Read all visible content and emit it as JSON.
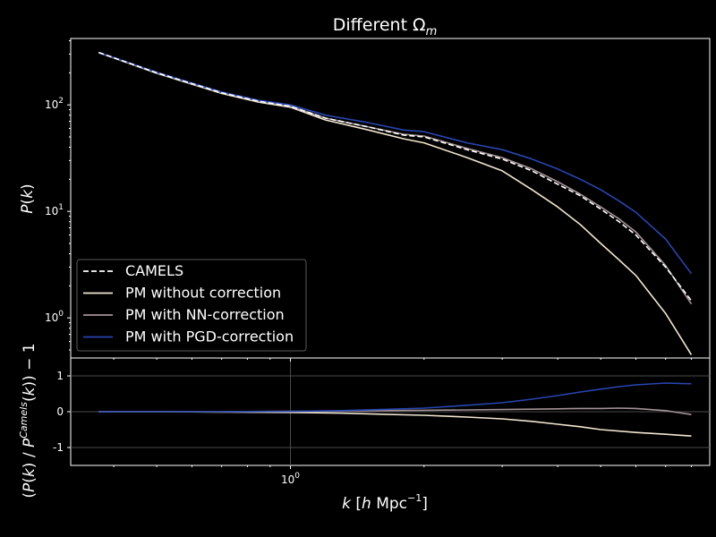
{
  "chart_data": {
    "type": "line",
    "title": "Different Ω",
    "title_sub": "m",
    "xscale": "log",
    "xlim": [
      0.32,
      8.8
    ],
    "x_tick_label": "10",
    "x_tick_exp": "0",
    "xlabel": {
      "pre": "k",
      "mid": " [",
      "h": "h",
      "unit": " Mpc",
      "exp": "−1",
      "post": "]"
    },
    "top": {
      "yscale": "log",
      "ylim": [
        0.42,
        420
      ],
      "yticks": [
        {
          "base": "10",
          "exp": "2",
          "v": 100
        },
        {
          "base": "10",
          "exp": "1",
          "v": 10
        },
        {
          "base": "10",
          "exp": "0",
          "v": 1
        }
      ],
      "ylabel": {
        "a": "P",
        "b": "(",
        "c": "k",
        "d": ")"
      },
      "legend_position": "lower-left",
      "series": [
        {
          "name": "CAMELS",
          "color": "#ffffff",
          "dash": true,
          "x": [
            0.37,
            0.5,
            0.7,
            0.85,
            1.0,
            1.2,
            1.5,
            1.8,
            2.0,
            2.5,
            3.0,
            3.5,
            4.0,
            4.5,
            5.0,
            5.5,
            6.0,
            7.0,
            8.0
          ],
          "y": [
            310,
            200,
            130,
            108,
            97,
            75,
            62,
            52,
            50,
            38,
            31,
            24,
            18,
            14,
            10.5,
            8.0,
            6.0,
            3.0,
            1.45
          ]
        },
        {
          "name": "PM without correction",
          "color": "#f2e6d0",
          "dash": false,
          "x": [
            0.37,
            0.5,
            0.7,
            0.85,
            1.0,
            1.2,
            1.5,
            1.8,
            2.0,
            2.5,
            3.0,
            3.5,
            4.0,
            4.5,
            5.0,
            5.5,
            6.0,
            7.0,
            8.0
          ],
          "y": [
            310,
            198,
            128,
            106,
            95,
            72,
            58,
            48,
            44,
            32,
            24,
            16,
            11,
            7.5,
            5.0,
            3.5,
            2.5,
            1.1,
            0.45
          ]
        },
        {
          "name": "PM with NN-correction",
          "color": "#a49296",
          "dash": false,
          "x": [
            0.37,
            0.5,
            0.7,
            0.85,
            1.0,
            1.2,
            1.5,
            1.8,
            2.0,
            2.5,
            3.0,
            3.5,
            4.0,
            4.5,
            5.0,
            5.5,
            6.0,
            7.0,
            8.0
          ],
          "y": [
            310,
            200,
            130,
            108,
            97,
            75,
            62,
            53,
            51,
            39,
            32,
            25,
            19,
            14.5,
            11,
            8.5,
            6.4,
            3.1,
            1.35
          ]
        },
        {
          "name": "PM with PGD-correction",
          "color": "#2845b0",
          "dash": false,
          "x": [
            0.37,
            0.5,
            0.7,
            0.85,
            1.0,
            1.2,
            1.5,
            1.8,
            2.0,
            2.5,
            3.0,
            3.5,
            4.0,
            4.5,
            5.0,
            5.5,
            6.0,
            7.0,
            8.0
          ],
          "y": [
            312,
            202,
            132,
            110,
            100,
            80,
            68,
            58,
            56,
            44,
            38,
            31,
            25,
            20,
            16,
            12.5,
            9.8,
            5.5,
            2.6
          ]
        }
      ]
    },
    "bottom": {
      "ylim": [
        -1.5,
        1.5
      ],
      "yticks": [
        1,
        0,
        -1
      ],
      "ylabel": {
        "a": "(",
        "b": "P",
        "c": "(",
        "d": "k",
        "e": ") / ",
        "f": "P",
        "sup": "Camels",
        "g": "(",
        "h": "k",
        "i": ")) − 1"
      },
      "series": [
        {
          "name": "PM without correction",
          "color": "#f2e6d0",
          "x": [
            0.37,
            0.5,
            0.7,
            1.0,
            1.3,
            1.6,
            2.0,
            2.5,
            3.0,
            3.5,
            4.0,
            4.5,
            5.0,
            6.0,
            7.0,
            8.0
          ],
          "y": [
            0.0,
            0.0,
            -0.01,
            -0.02,
            -0.04,
            -0.07,
            -0.1,
            -0.15,
            -0.2,
            -0.27,
            -0.35,
            -0.42,
            -0.5,
            -0.58,
            -0.63,
            -0.68
          ]
        },
        {
          "name": "PM with NN-correction",
          "color": "#a49296",
          "x": [
            0.37,
            0.5,
            0.7,
            1.0,
            1.3,
            1.6,
            2.0,
            2.5,
            3.0,
            3.5,
            4.0,
            4.5,
            5.0,
            5.5,
            6.0,
            7.0,
            8.0
          ],
          "y": [
            0.0,
            0.0,
            0.0,
            0.01,
            0.02,
            0.03,
            0.04,
            0.05,
            0.06,
            0.07,
            0.08,
            0.09,
            0.09,
            0.1,
            0.09,
            0.03,
            -0.08
          ]
        },
        {
          "name": "PM with PGD-correction",
          "color": "#2845b0",
          "x": [
            0.37,
            0.5,
            0.7,
            1.0,
            1.3,
            1.6,
            2.0,
            2.5,
            3.0,
            3.5,
            4.0,
            4.5,
            5.0,
            5.5,
            6.0,
            7.0,
            8.0
          ],
          "y": [
            0.0,
            0.0,
            0.0,
            0.01,
            0.03,
            0.06,
            0.1,
            0.18,
            0.25,
            0.35,
            0.45,
            0.55,
            0.63,
            0.7,
            0.75,
            0.8,
            0.78
          ]
        }
      ]
    }
  }
}
